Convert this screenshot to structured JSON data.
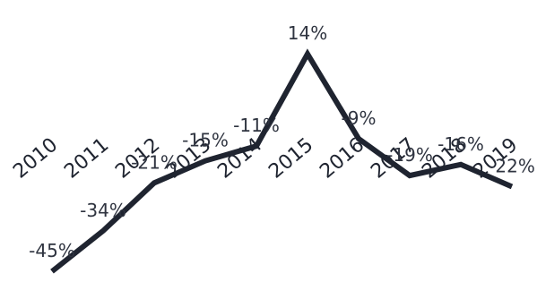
{
  "chart_data": {
    "type": "line",
    "x": [
      "2010",
      "2011",
      "2012",
      "2013",
      "2014",
      "2015",
      "2016",
      "2017",
      "2018",
      "2019"
    ],
    "series": [
      {
        "values": [
          -45,
          -34,
          -21,
          -15,
          -11,
          14,
          -9,
          -19,
          -16,
          -22
        ],
        "data_labels": [
          "-45%",
          "-34%",
          "-21%",
          "-15%",
          "-11%",
          "14%",
          "-9%",
          "-19%",
          "-16%",
          "-22%"
        ],
        "color": "#1f2430"
      }
    ],
    "title": "",
    "xlabel": "",
    "ylabel": "",
    "ylim": [
      -52,
      16
    ],
    "grid": false,
    "legend": "none"
  }
}
